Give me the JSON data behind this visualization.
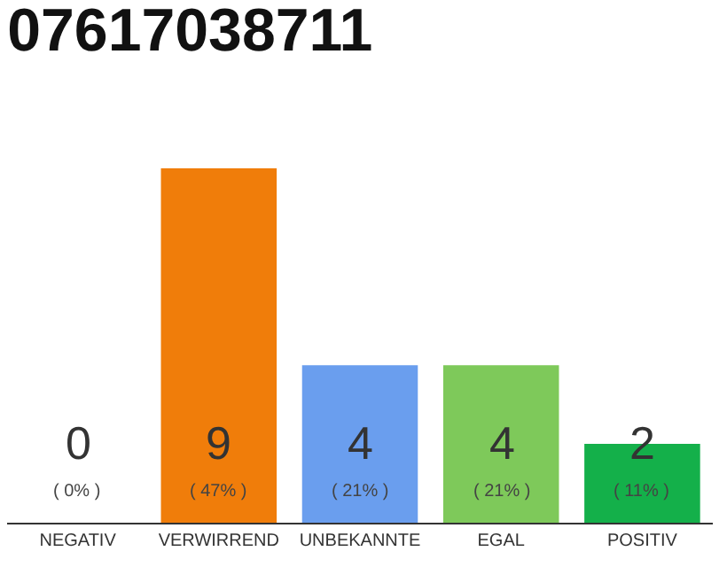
{
  "chart_data": {
    "type": "bar",
    "title": "07617038711",
    "categories": [
      "NEGATIV",
      "VERWIRREND",
      "UNBEKANNTE",
      "EGAL",
      "POSITIV"
    ],
    "values": [
      0,
      9,
      4,
      4,
      2
    ],
    "colors": [
      "#555555",
      "#f07d0a",
      "#6a9eee",
      "#7ec95a",
      "#14b04a"
    ],
    "value_labels": [
      "0\n( 0% )",
      "9\n( 47% )",
      "4\n( 21% )",
      "4\n( 21% )",
      "2\n( 11% )"
    ],
    "legend": false
  }
}
